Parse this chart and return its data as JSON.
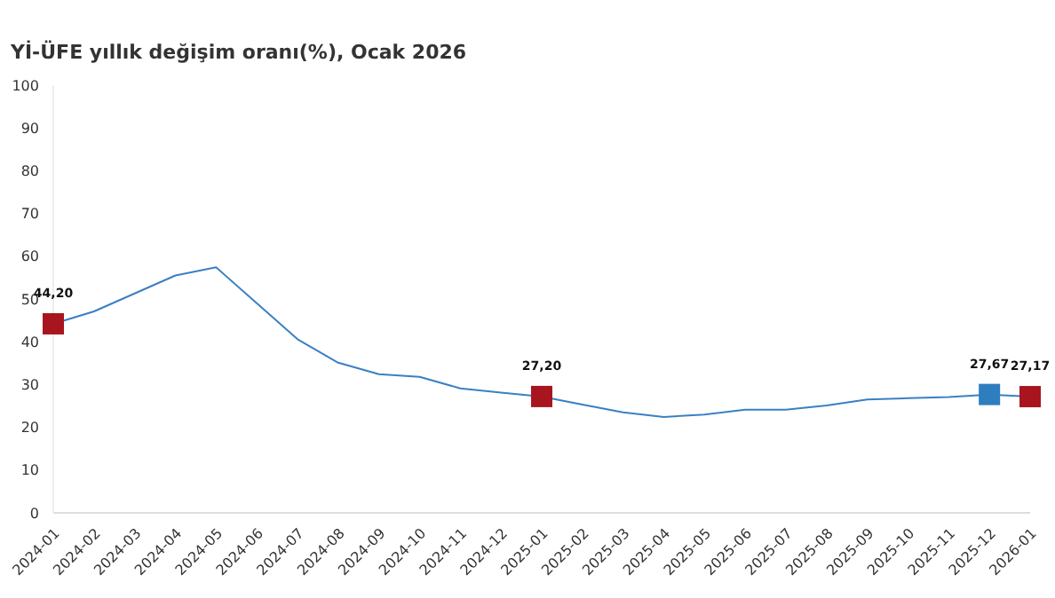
{
  "chart_data": {
    "type": "line",
    "title": "Yİ-ÜFE yıllık değişim oranı(%), Ocak 2026",
    "categories": [
      "2024-01",
      "2024-02",
      "2024-03",
      "2024-04",
      "2024-05",
      "2024-06",
      "2024-07",
      "2024-08",
      "2024-09",
      "2024-10",
      "2024-11",
      "2024-12",
      "2025-01",
      "2025-02",
      "2025-03",
      "2025-04",
      "2025-05",
      "2025-06",
      "2025-07",
      "2025-08",
      "2025-09",
      "2025-10",
      "2025-11",
      "2025-12",
      "2026-01"
    ],
    "series": [
      {
        "color": "#3a80c3",
        "marker": "none",
        "values": [
          44.2,
          47.1,
          51.3,
          55.5,
          57.4,
          49.0,
          40.6,
          35.1,
          32.4,
          31.8,
          29.1,
          28.1,
          27.2,
          25.3,
          23.5,
          22.4,
          23.0,
          24.1,
          24.1,
          25.1,
          26.5,
          26.8,
          27.1,
          27.67,
          27.17
        ]
      },
      {
        "type": "scatter",
        "marker": "square",
        "colors": [
          "#a8151f",
          null,
          null,
          null,
          null,
          null,
          null,
          null,
          null,
          null,
          null,
          null,
          "#a8151f",
          null,
          null,
          null,
          null,
          null,
          null,
          null,
          null,
          null,
          null,
          "#2e7dbf",
          "#a8151f"
        ],
        "values": [
          44.2,
          null,
          null,
          null,
          null,
          null,
          null,
          null,
          null,
          null,
          null,
          null,
          27.2,
          null,
          null,
          null,
          null,
          null,
          null,
          null,
          null,
          null,
          null,
          27.67,
          27.17
        ],
        "value_labels": [
          "44,20",
          null,
          null,
          null,
          null,
          null,
          null,
          null,
          null,
          null,
          null,
          null,
          "27,20",
          null,
          null,
          null,
          null,
          null,
          null,
          null,
          null,
          null,
          null,
          "27,67",
          "27,17"
        ]
      }
    ],
    "ylim": [
      0,
      100
    ],
    "yticks": [
      0,
      10,
      20,
      30,
      40,
      50,
      60,
      70,
      80,
      90,
      100
    ],
    "grid": false
  }
}
